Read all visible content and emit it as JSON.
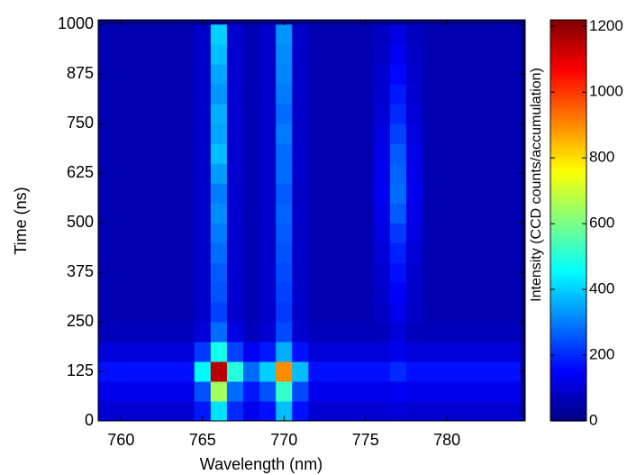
{
  "chart_data": {
    "type": "heatmap",
    "x_label": "Wavelength (nm)",
    "y_label": "Time (ns)",
    "colorbar_label": "Intensity (CCD counts/accumulation)",
    "colormap": "jet",
    "xlim": [
      758.6,
      784.8
    ],
    "xticks": [
      760,
      765,
      770,
      775,
      780
    ],
    "ylim": [
      0,
      1012
    ],
    "yticks": [
      0,
      125,
      250,
      375,
      500,
      625,
      750,
      875,
      1000
    ],
    "clim": [
      0,
      1220
    ],
    "cticks": [
      0,
      200,
      400,
      600,
      800,
      1000,
      1200
    ],
    "xbins": [
      758.5,
      759.5,
      760.5,
      761.5,
      762.5,
      763.5,
      764.5,
      765.5,
      766.5,
      767.5,
      768.5,
      769.5,
      770.5,
      771.5,
      772.5,
      773.5,
      774.5,
      775.5,
      776.5,
      777.5,
      778.5,
      779.5,
      780.5,
      781.5,
      782.5,
      783.5,
      784.5
    ],
    "ybins": [
      0,
      50,
      100,
      150,
      200,
      250,
      300,
      350,
      400,
      450,
      500,
      550,
      600,
      650,
      700,
      750,
      800,
      850,
      900,
      950,
      1000
    ],
    "z": [
      [
        100,
        100,
        100,
        100,
        100,
        100,
        180,
        420,
        200,
        130,
        170,
        380,
        170,
        100,
        100,
        100,
        100,
        100,
        110,
        100,
        100,
        100,
        100,
        100,
        100,
        100
      ],
      [
        130,
        130,
        130,
        130,
        130,
        130,
        250,
        650,
        280,
        180,
        250,
        520,
        240,
        130,
        130,
        130,
        130,
        130,
        140,
        130,
        130,
        130,
        130,
        130,
        130,
        130
      ],
      [
        170,
        170,
        170,
        170,
        170,
        170,
        450,
        1150,
        500,
        280,
        400,
        900,
        380,
        170,
        170,
        170,
        170,
        170,
        200,
        170,
        170,
        170,
        170,
        170,
        170,
        170
      ],
      [
        110,
        110,
        110,
        110,
        110,
        110,
        220,
        480,
        230,
        140,
        180,
        360,
        170,
        110,
        110,
        110,
        110,
        110,
        130,
        110,
        110,
        110,
        110,
        110,
        110,
        110
      ],
      [
        70,
        70,
        70,
        70,
        70,
        70,
        110,
        280,
        120,
        75,
        100,
        240,
        100,
        70,
        70,
        70,
        70,
        75,
        110,
        75,
        70,
        70,
        70,
        70,
        70,
        70
      ],
      [
        60,
        60,
        60,
        60,
        60,
        60,
        90,
        230,
        100,
        65,
        90,
        220,
        90,
        60,
        60,
        60,
        60,
        85,
        130,
        85,
        60,
        60,
        60,
        60,
        60,
        60
      ],
      [
        60,
        60,
        60,
        60,
        60,
        60,
        90,
        250,
        100,
        65,
        90,
        230,
        90,
        60,
        60,
        60,
        60,
        90,
        150,
        90,
        60,
        60,
        60,
        60,
        60,
        60
      ],
      [
        60,
        60,
        60,
        60,
        60,
        60,
        90,
        260,
        100,
        65,
        90,
        240,
        90,
        60,
        60,
        60,
        60,
        95,
        170,
        95,
        60,
        60,
        60,
        60,
        60,
        60
      ],
      [
        60,
        60,
        60,
        60,
        60,
        60,
        90,
        280,
        100,
        65,
        90,
        250,
        90,
        60,
        60,
        60,
        60,
        105,
        190,
        105,
        60,
        60,
        60,
        60,
        60,
        60
      ],
      [
        60,
        60,
        60,
        60,
        60,
        60,
        90,
        300,
        100,
        65,
        90,
        260,
        90,
        60,
        60,
        60,
        60,
        115,
        220,
        115,
        60,
        60,
        60,
        60,
        60,
        60
      ],
      [
        60,
        60,
        60,
        60,
        60,
        60,
        90,
        320,
        100,
        65,
        90,
        270,
        90,
        60,
        60,
        60,
        60,
        125,
        260,
        125,
        60,
        60,
        60,
        60,
        60,
        60
      ],
      [
        60,
        60,
        60,
        60,
        60,
        60,
        90,
        300,
        100,
        65,
        90,
        260,
        90,
        60,
        60,
        60,
        60,
        135,
        280,
        135,
        60,
        60,
        60,
        60,
        60,
        60
      ],
      [
        60,
        60,
        60,
        60,
        60,
        60,
        90,
        340,
        100,
        65,
        90,
        280,
        90,
        60,
        60,
        60,
        60,
        130,
        270,
        130,
        60,
        60,
        60,
        60,
        60,
        60
      ],
      [
        60,
        60,
        60,
        60,
        60,
        60,
        90,
        380,
        100,
        65,
        90,
        280,
        90,
        60,
        60,
        60,
        60,
        125,
        260,
        125,
        60,
        60,
        60,
        60,
        60,
        60
      ],
      [
        60,
        60,
        60,
        60,
        60,
        60,
        90,
        350,
        100,
        65,
        90,
        300,
        90,
        60,
        60,
        60,
        60,
        115,
        230,
        115,
        60,
        60,
        60,
        60,
        60,
        60
      ],
      [
        60,
        60,
        60,
        60,
        60,
        60,
        90,
        360,
        100,
        65,
        90,
        280,
        90,
        60,
        60,
        60,
        60,
        105,
        200,
        105,
        60,
        60,
        60,
        60,
        60,
        60
      ],
      [
        60,
        60,
        60,
        60,
        60,
        60,
        90,
        330,
        100,
        65,
        90,
        300,
        90,
        60,
        60,
        60,
        60,
        100,
        180,
        100,
        60,
        60,
        60,
        60,
        60,
        60
      ],
      [
        60,
        60,
        60,
        60,
        60,
        60,
        90,
        350,
        100,
        65,
        90,
        310,
        90,
        60,
        60,
        60,
        60,
        95,
        160,
        95,
        60,
        60,
        60,
        60,
        60,
        60
      ],
      [
        60,
        60,
        60,
        60,
        60,
        60,
        90,
        380,
        100,
        65,
        90,
        320,
        90,
        60,
        60,
        60,
        60,
        85,
        140,
        85,
        60,
        60,
        60,
        60,
        60,
        60
      ],
      [
        60,
        60,
        60,
        60,
        60,
        60,
        90,
        400,
        100,
        65,
        90,
        330,
        90,
        60,
        60,
        60,
        60,
        80,
        120,
        80,
        60,
        60,
        60,
        60,
        60,
        60
      ]
    ]
  }
}
